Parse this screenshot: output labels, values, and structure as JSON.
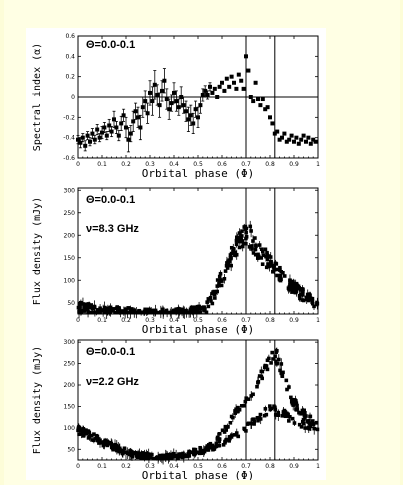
{
  "chart_data": [
    {
      "type": "scatter",
      "panel": "spectral-index",
      "xlabel": "Orbital  phase  (Φ)",
      "ylabel": "Spectral index  (α)",
      "annotations": [
        "Θ=0.0-0.1"
      ],
      "xlim": [
        0,
        1
      ],
      "ylim": [
        -0.6,
        0.6
      ],
      "xticks": [
        "0",
        "0.1",
        "0.2",
        "0.3",
        "0.4",
        "0.5",
        "0.6",
        "0.7",
        "0.8",
        "0.9",
        "1"
      ],
      "yticks": [
        "-0.6",
        "-0.4",
        "-0.2",
        "0",
        "0.2",
        "0.4",
        "0.6"
      ],
      "ytick_values": [
        -0.6,
        -0.4,
        -0.2,
        0,
        0.2,
        0.4,
        0.6
      ],
      "hlines": [
        0
      ],
      "vlines": [
        0.7,
        0.82
      ],
      "grid": false,
      "points": [
        [
          0.0,
          -0.42,
          0.04
        ],
        [
          0.01,
          -0.45,
          0.05
        ],
        [
          0.02,
          -0.4,
          0.04
        ],
        [
          0.03,
          -0.48,
          0.05
        ],
        [
          0.04,
          -0.38,
          0.04
        ],
        [
          0.05,
          -0.44,
          0.04
        ],
        [
          0.06,
          -0.36,
          0.05
        ],
        [
          0.07,
          -0.42,
          0.04
        ],
        [
          0.08,
          -0.32,
          0.05
        ],
        [
          0.09,
          -0.4,
          0.04
        ],
        [
          0.1,
          -0.35,
          0.06
        ],
        [
          0.11,
          -0.3,
          0.05
        ],
        [
          0.12,
          -0.38,
          0.04
        ],
        [
          0.13,
          -0.28,
          0.06
        ],
        [
          0.14,
          -0.34,
          0.05
        ],
        [
          0.15,
          -0.22,
          0.08
        ],
        [
          0.16,
          -0.3,
          0.06
        ],
        [
          0.17,
          -0.38,
          0.05
        ],
        [
          0.18,
          -0.26,
          0.07
        ],
        [
          0.19,
          -0.18,
          0.06
        ],
        [
          0.2,
          -0.3,
          0.1
        ],
        [
          0.21,
          -0.42,
          0.12
        ],
        [
          0.22,
          -0.36,
          0.08
        ],
        [
          0.23,
          -0.24,
          0.1
        ],
        [
          0.24,
          -0.14,
          0.08
        ],
        [
          0.25,
          -0.2,
          0.1
        ],
        [
          0.26,
          -0.3,
          0.12
        ],
        [
          0.27,
          -0.1,
          0.1
        ],
        [
          0.28,
          -0.04,
          0.1
        ],
        [
          0.29,
          -0.16,
          0.1
        ],
        [
          0.3,
          0.04,
          0.12
        ],
        [
          0.31,
          -0.04,
          0.14
        ],
        [
          0.32,
          0.12,
          0.14
        ],
        [
          0.33,
          0.02,
          0.1
        ],
        [
          0.34,
          -0.08,
          0.12
        ],
        [
          0.35,
          0.06,
          0.1
        ],
        [
          0.36,
          0.16,
          0.12
        ],
        [
          0.37,
          -0.02,
          0.1
        ],
        [
          0.38,
          -0.12,
          0.1
        ],
        [
          0.39,
          -0.06,
          0.08
        ],
        [
          0.4,
          0.04,
          0.1
        ],
        [
          0.41,
          -0.04,
          0.1
        ],
        [
          0.42,
          -0.1,
          0.08
        ],
        [
          0.43,
          0.0,
          0.1
        ],
        [
          0.44,
          -0.08,
          0.08
        ],
        [
          0.45,
          -0.14,
          0.1
        ],
        [
          0.46,
          -0.22,
          0.12
        ],
        [
          0.47,
          -0.18,
          0.1
        ],
        [
          0.48,
          -0.26,
          0.1
        ],
        [
          0.49,
          -0.12,
          0.08
        ],
        [
          0.5,
          -0.2,
          0.1
        ],
        [
          0.51,
          -0.08,
          0.08
        ],
        [
          0.52,
          0.02,
          0.06
        ],
        [
          0.53,
          0.06,
          0.05
        ],
        [
          0.54,
          0.02,
          0.04
        ],
        [
          0.55,
          0.1,
          0.04
        ],
        [
          0.56,
          0.04,
          0.03
        ],
        [
          0.57,
          0.08,
          0.03
        ],
        [
          0.58,
          0.0,
          0.03
        ],
        [
          0.59,
          0.1,
          0.03
        ],
        [
          0.6,
          0.14,
          0.03
        ],
        [
          0.61,
          0.06,
          0.03
        ],
        [
          0.62,
          0.18,
          0.03
        ],
        [
          0.63,
          0.1,
          0.03
        ],
        [
          0.64,
          0.2,
          0.03
        ],
        [
          0.65,
          0.14,
          0.03
        ],
        [
          0.66,
          0.08,
          0.03
        ],
        [
          0.67,
          0.22,
          0.03
        ],
        [
          0.68,
          0.16,
          0.03
        ],
        [
          0.69,
          0.08,
          0.03
        ],
        [
          0.7,
          0.4,
          0.03
        ],
        [
          0.71,
          0.26,
          0.03
        ],
        [
          0.72,
          0.0,
          0.03
        ],
        [
          0.73,
          -0.04,
          0.03
        ],
        [
          0.74,
          0.14,
          0.03
        ],
        [
          0.75,
          -0.02,
          0.03
        ],
        [
          0.76,
          -0.08,
          0.03
        ],
        [
          0.77,
          -0.02,
          0.03
        ],
        [
          0.78,
          -0.12,
          0.03
        ],
        [
          0.79,
          -0.1,
          0.03
        ],
        [
          0.8,
          -0.2,
          0.03
        ],
        [
          0.81,
          -0.26,
          0.03
        ],
        [
          0.82,
          -0.36,
          0.03
        ],
        [
          0.83,
          -0.34,
          0.03
        ],
        [
          0.84,
          -0.42,
          0.03
        ],
        [
          0.85,
          -0.4,
          0.03
        ],
        [
          0.86,
          -0.36,
          0.03
        ],
        [
          0.87,
          -0.44,
          0.03
        ],
        [
          0.88,
          -0.42,
          0.03
        ],
        [
          0.89,
          -0.38,
          0.03
        ],
        [
          0.9,
          -0.44,
          0.03
        ],
        [
          0.91,
          -0.4,
          0.03
        ],
        [
          0.92,
          -0.46,
          0.03
        ],
        [
          0.93,
          -0.42,
          0.03
        ],
        [
          0.94,
          -0.38,
          0.03
        ],
        [
          0.95,
          -0.44,
          0.03
        ],
        [
          0.96,
          -0.4,
          0.03
        ],
        [
          0.97,
          -0.46,
          0.03
        ],
        [
          0.98,
          -0.42,
          0.03
        ],
        [
          0.99,
          -0.44,
          0.03
        ]
      ]
    },
    {
      "type": "scatter",
      "panel": "flux-8.3",
      "xlabel": "Orbital  phase  (Φ)",
      "ylabel": "Flux density  (mJy)",
      "annotations": [
        "Θ=0.0-0.1",
        "ν=8.3 GHz"
      ],
      "xlim": [
        0,
        1
      ],
      "ylim": [
        25,
        305
      ],
      "xticks": [
        "0",
        "0.1",
        "0.2",
        "0.3",
        "0.4",
        "0.5",
        "0.6",
        "0.7",
        "0.8",
        "0.9",
        "1"
      ],
      "yticks": [
        "50",
        "100",
        "150",
        "200",
        "250",
        "300"
      ],
      "ytick_values": [
        50,
        100,
        150,
        200,
        250,
        300
      ],
      "vlines": [
        0.7,
        0.82
      ],
      "grid": false,
      "profile": [
        [
          0.0,
          40
        ],
        [
          0.05,
          35
        ],
        [
          0.1,
          33
        ],
        [
          0.15,
          30
        ],
        [
          0.2,
          28
        ],
        [
          0.25,
          26
        ],
        [
          0.3,
          25
        ],
        [
          0.35,
          25
        ],
        [
          0.4,
          26
        ],
        [
          0.45,
          27
        ],
        [
          0.5,
          30
        ],
        [
          0.53,
          36
        ],
        [
          0.56,
          60
        ],
        [
          0.59,
          95
        ],
        [
          0.62,
          130
        ],
        [
          0.65,
          165
        ],
        [
          0.68,
          195
        ],
        [
          0.7,
          205
        ],
        [
          0.72,
          195
        ],
        [
          0.74,
          175
        ],
        [
          0.76,
          160
        ],
        [
          0.78,
          150
        ],
        [
          0.8,
          140
        ],
        [
          0.82,
          130
        ],
        [
          0.84,
          115
        ],
        [
          0.86,
          105
        ],
        [
          0.88,
          95
        ],
        [
          0.9,
          85
        ],
        [
          0.92,
          75
        ],
        [
          0.94,
          65
        ],
        [
          0.96,
          58
        ],
        [
          0.98,
          50
        ],
        [
          1.0,
          45
        ]
      ],
      "scatter_amplitude": 32
    },
    {
      "type": "scatter",
      "panel": "flux-2.2",
      "xlabel": "Orbital  phase  (Φ)",
      "ylabel": "Flux density  (mJy)",
      "annotations": [
        "Θ=0.0-0.1",
        "ν=2.2 GHz"
      ],
      "xlim": [
        0,
        1
      ],
      "ylim": [
        25,
        305
      ],
      "xticks": [
        "0",
        "0.1",
        "0.2",
        "0.3",
        "0.4",
        "0.5",
        "0.6",
        "0.7",
        "0.8",
        "0.9",
        "1"
      ],
      "yticks": [
        "50",
        "100",
        "150",
        "200",
        "250",
        "300"
      ],
      "ytick_values": [
        50,
        100,
        150,
        200,
        250,
        300
      ],
      "vlines": [
        0.7,
        0.82
      ],
      "grid": false,
      "profile": [
        [
          0.0,
          95
        ],
        [
          0.03,
          88
        ],
        [
          0.06,
          80
        ],
        [
          0.1,
          68
        ],
        [
          0.14,
          58
        ],
        [
          0.18,
          48
        ],
        [
          0.22,
          40
        ],
        [
          0.26,
          36
        ],
        [
          0.3,
          32
        ],
        [
          0.34,
          30
        ],
        [
          0.38,
          32
        ],
        [
          0.42,
          35
        ],
        [
          0.46,
          40
        ],
        [
          0.5,
          45
        ],
        [
          0.54,
          52
        ],
        [
          0.58,
          70
        ],
        [
          0.62,
          100
        ],
        [
          0.66,
          135
        ],
        [
          0.7,
          160
        ],
        [
          0.74,
          195
        ],
        [
          0.78,
          235
        ],
        [
          0.81,
          275
        ],
        [
          0.83,
          265
        ],
        [
          0.86,
          220
        ],
        [
          0.88,
          185
        ],
        [
          0.9,
          160
        ],
        [
          0.93,
          140
        ],
        [
          0.96,
          120
        ],
        [
          1.0,
          105
        ]
      ],
      "second_branch": [
        [
          0.55,
          50
        ],
        [
          0.6,
          62
        ],
        [
          0.65,
          80
        ],
        [
          0.7,
          100
        ],
        [
          0.74,
          120
        ],
        [
          0.78,
          140
        ],
        [
          0.82,
          140
        ],
        [
          0.86,
          130
        ],
        [
          0.9,
          118
        ],
        [
          0.95,
          108
        ],
        [
          1.0,
          100
        ]
      ],
      "scatter_amplitude": 18
    }
  ]
}
